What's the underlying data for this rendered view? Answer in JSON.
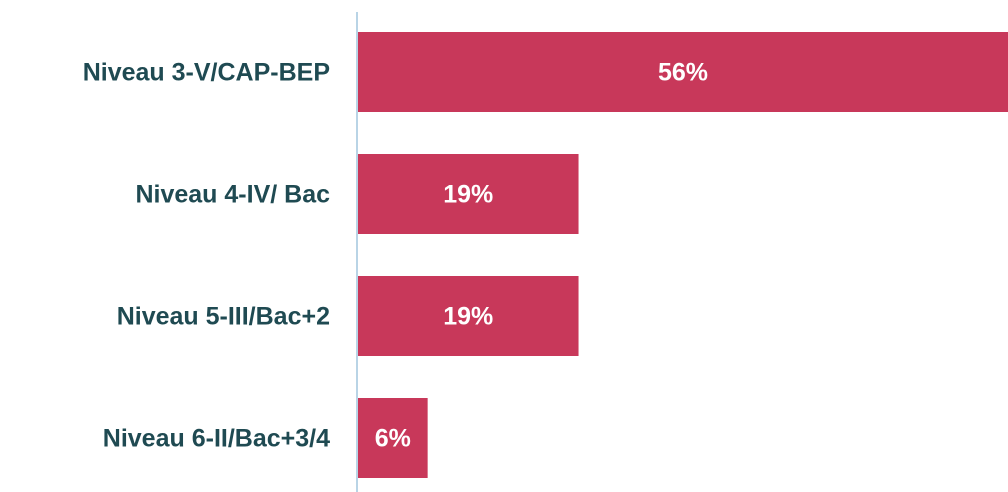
{
  "chart_data": {
    "type": "bar",
    "orientation": "horizontal",
    "categories": [
      "Niveau 3-V/CAP-BEP",
      "Niveau 4-IV/ Bac",
      "Niveau 5-III/Bac+2",
      "Niveau 6-II/Bac+3/4"
    ],
    "values": [
      56,
      19,
      19,
      6
    ],
    "value_labels": [
      "56%",
      "19%",
      "19%",
      "6%"
    ],
    "color": "#c8385a",
    "xlim": [
      0,
      56
    ]
  }
}
